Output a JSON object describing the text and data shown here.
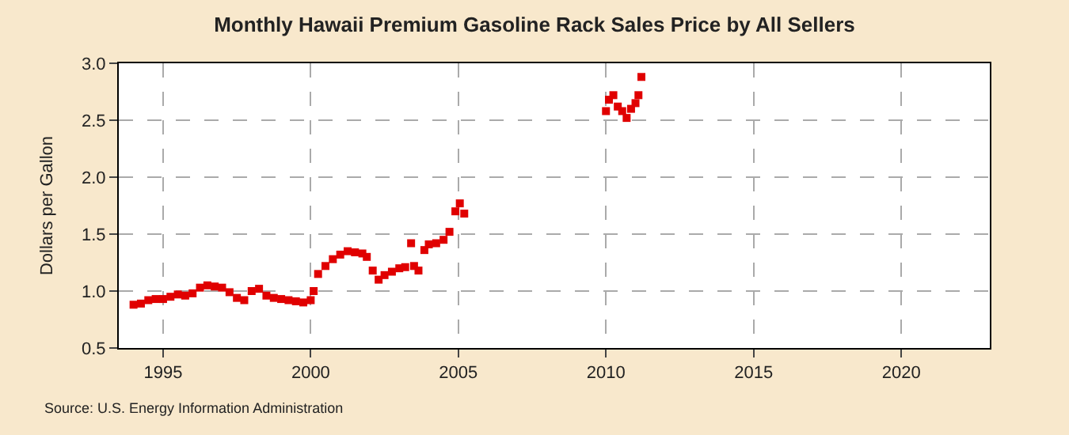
{
  "chart_data": {
    "type": "scatter",
    "title": "Monthly Hawaii Premium Gasoline Rack Sales Price by All Sellers",
    "ylabel": "Dollars per Gallon",
    "annotations": [
      "Source: U.S. Energy Information Administration"
    ],
    "series": [
      {
        "color": "#e00000",
        "x": [
          1994.0,
          1994.25,
          1994.5,
          1994.75,
          1995.0,
          1995.25,
          1995.5,
          1995.75,
          1996.0,
          1996.25,
          1996.5,
          1996.75,
          1997.0,
          1997.25,
          1997.5,
          1997.75,
          1998.0,
          1998.25,
          1998.5,
          1998.75,
          1999.0,
          1999.25,
          1999.5,
          1999.75,
          2000.0,
          2000.1,
          2000.25,
          2000.5,
          2000.75,
          2001.0,
          2001.25,
          2001.5,
          2001.75,
          2001.9,
          2002.1,
          2002.3,
          2002.5,
          2002.75,
          2003.0,
          2003.2,
          2003.4,
          2003.5,
          2003.65,
          2003.85,
          2004.0,
          2004.25,
          2004.5,
          2004.7,
          2004.9,
          2005.05,
          2005.2,
          2010.0,
          2010.1,
          2010.25,
          2010.4,
          2010.55,
          2010.7,
          2010.85,
          2011.0,
          2011.1,
          2011.2
        ],
        "values": [
          0.88,
          0.89,
          0.92,
          0.93,
          0.93,
          0.95,
          0.97,
          0.96,
          0.98,
          1.03,
          1.05,
          1.04,
          1.03,
          0.99,
          0.94,
          0.92,
          1.0,
          1.02,
          0.96,
          0.94,
          0.93,
          0.92,
          0.91,
          0.9,
          0.92,
          1.0,
          1.15,
          1.22,
          1.28,
          1.32,
          1.35,
          1.34,
          1.33,
          1.3,
          1.18,
          1.1,
          1.14,
          1.17,
          1.2,
          1.21,
          1.42,
          1.22,
          1.18,
          1.36,
          1.41,
          1.42,
          1.45,
          1.52,
          1.7,
          1.77,
          1.68,
          2.58,
          2.68,
          2.72,
          2.62,
          2.58,
          2.52,
          2.6,
          2.65,
          2.72,
          2.88
        ]
      }
    ],
    "xlim": [
      1993.5,
      2023
    ],
    "xticks": [
      1995,
      2000,
      2005,
      2010,
      2015,
      2020
    ],
    "ylim": [
      0.5,
      3.0
    ],
    "yticks": [
      0.5,
      {
        "value": 1,
        "label": "1.0"
      },
      1.5,
      {
        "value": 2,
        "label": "2.0"
      },
      2.5,
      {
        "value": 3,
        "label": "3.0"
      }
    ],
    "grid": true,
    "marker": "square"
  }
}
